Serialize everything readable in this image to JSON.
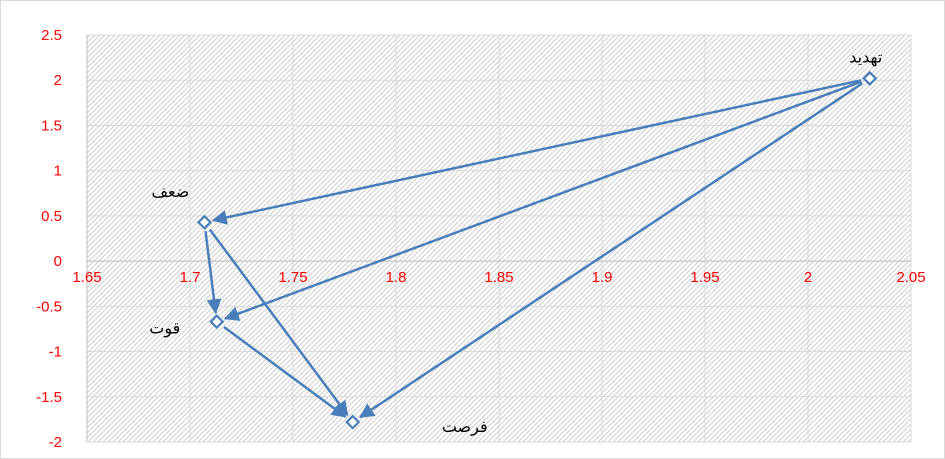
{
  "chart_data": {
    "type": "scatter",
    "title": "",
    "xlabel": "",
    "ylabel": "",
    "xlim": [
      1.65,
      2.05
    ],
    "ylim": [
      -2,
      2.5
    ],
    "x_ticks": [
      "1.65",
      "1.7",
      "1.75",
      "1.8",
      "1.85",
      "1.9",
      "1.95",
      "2",
      "2.05"
    ],
    "y_ticks": [
      "2.5",
      "2",
      "1.5",
      "1",
      "0.5",
      "0",
      "-0.5",
      "-1",
      "-1.5",
      "-2"
    ],
    "points": [
      {
        "label": "تهدید",
        "x": 2.03,
        "y": 2.02
      },
      {
        "label": "ضعف",
        "x": 1.707,
        "y": 0.43
      },
      {
        "label": "قوت",
        "x": 1.713,
        "y": -0.67
      },
      {
        "label": "فرصت",
        "x": 1.779,
        "y": -1.78
      }
    ],
    "arrows": [
      {
        "from": "تهدید",
        "to": "ضعف"
      },
      {
        "from": "تهدید",
        "to": "قوت"
      },
      {
        "from": "تهدید",
        "to": "فرصت"
      },
      {
        "from": "ضعف",
        "to": "قوت"
      },
      {
        "from": "ضعف",
        "to": "فرصت"
      },
      {
        "from": "قوت",
        "to": "فرصت"
      }
    ],
    "grid": true,
    "colors": {
      "series": "#4a7ebb",
      "tick_text": "#ff0000",
      "gridline": "#d9d9d9",
      "axis": "#bfbfbf",
      "hatch": "#c8c8c8"
    }
  }
}
